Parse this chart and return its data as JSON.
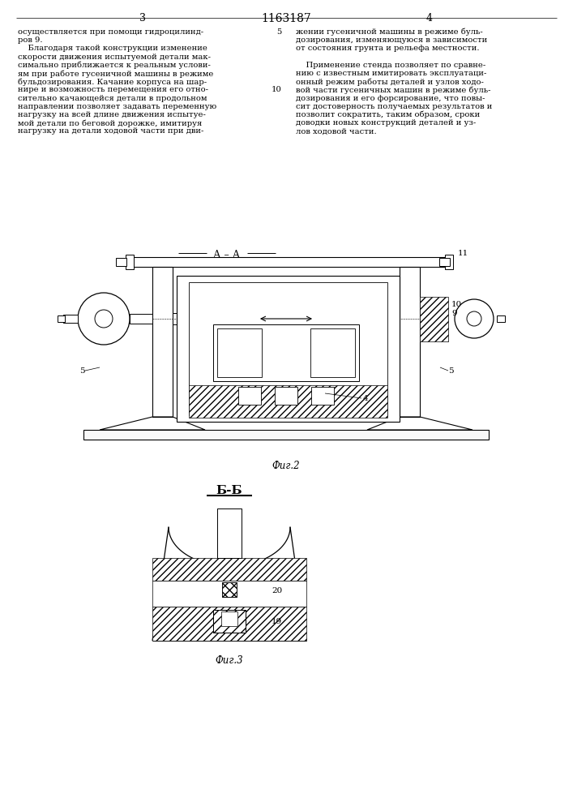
{
  "page_width": 7.07,
  "page_height": 10.0,
  "bg_color": "#ffffff",
  "patent_number": "1163187",
  "col3_header": "3",
  "col4_header": "4",
  "text_col3_lines": [
    "осуществляется при помощи гидроцилинд-",
    "ров 9.",
    "    Благодаря такой конструкции изменение",
    "скорости движения испытуемой детали мак-",
    "симально приближается к реальным услови-",
    "ям при работе гусеничной машины в режиме",
    "бульдозирования. Качание корпуса на шар-",
    "нире и возможность перемещения его отно-",
    "сительно качающейся детали в продольном",
    "направлении позволяет задавать переменную",
    "нагрузку на всей длине движения испытуе-",
    "мой детали по беговой дорожке, имитируя",
    "нагрузку на детали ходовой части при дви-"
  ],
  "text_col4_lines": [
    "жении гусеничной машины в режиме буль-",
    "дозирования, изменяющуюся в зависимости",
    "от состояния грунта и рельефа местности.",
    "",
    "    Применение стенда позволяет по сравне-",
    "нию с известным имитировать эксплуатаци-",
    "онный режим работы деталей и узлов ходо-",
    "вой части гусеничных машин в режиме буль-",
    "дозирования и его форсирование, что повы-",
    "сит достоверность получаемых результатов и",
    "позволит сократить, таким образом, сроки",
    "доводки новых конструкций деталей и уз-",
    "лов ходовой части."
  ],
  "para_num_5": "5",
  "para_num_10": "10",
  "fig2_label": "Фиг.2",
  "fig3_label": "Фиг.3",
  "section_AA": "А – А",
  "section_BB": "Б-Б",
  "label_11": "11",
  "label_10": "10",
  "label_9": "9",
  "label_5a": "5",
  "label_5b": "5",
  "label_4": "4",
  "label_20": "20",
  "label_19": "19",
  "line_color": "#000000",
  "text_fontsize": 7.2,
  "header_fontsize": 9,
  "patent_fontsize": 10,
  "fig_label_fontsize": 8.5,
  "section_fontsize": 9
}
